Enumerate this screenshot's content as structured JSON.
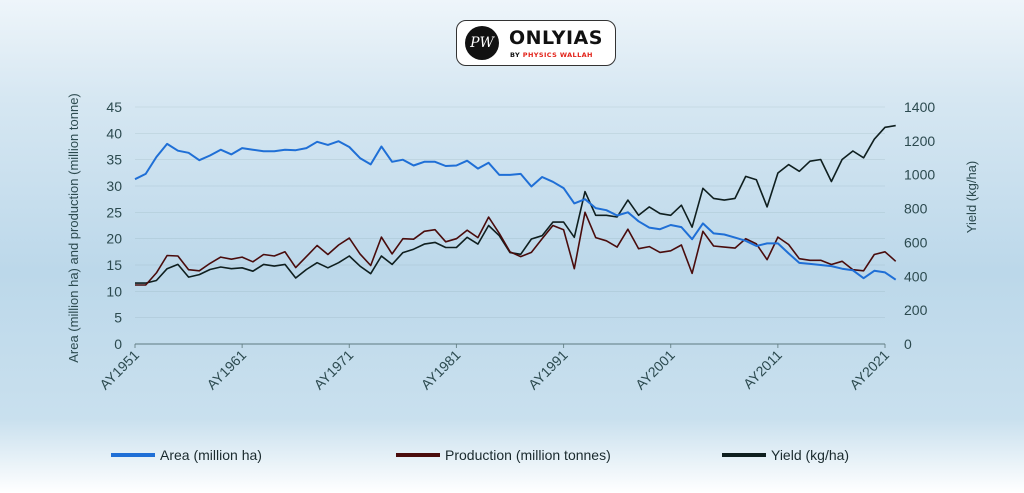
{
  "chart_data": {
    "type": "line",
    "colors": {
      "area": "#1f6fd6",
      "production": "#4a0c0c",
      "yield": "#0f1f1f",
      "axis": "#2c4a4f",
      "grid": "#6f8a90"
    },
    "left_axis": {
      "label": "Area (million ha) and production (million tonne)",
      "ylim": [
        0,
        45
      ],
      "ticks": [
        "0",
        "5",
        "10",
        "15",
        "20",
        "25",
        "30",
        "35",
        "40",
        "45"
      ],
      "tick_values": [
        0,
        5,
        10,
        15,
        20,
        25,
        30,
        35,
        40,
        45
      ]
    },
    "right_axis": {
      "label": "Yield (kg/ha)",
      "ylim": [
        0,
        1400
      ],
      "ticks": [
        "0",
        "200",
        "400",
        "600",
        "800",
        "1000",
        "1200",
        "1400"
      ],
      "tick_values": [
        0,
        200,
        400,
        600,
        800,
        1000,
        1200,
        1400
      ]
    },
    "x": {
      "start_year": 1951,
      "end_year": 2021,
      "tick_labels": [
        "AY1951",
        "AY1961",
        "AY1971",
        "AY1981",
        "AY1991",
        "AY2001",
        "AY2011",
        "AY2021"
      ],
      "tick_years": [
        1951,
        1961,
        1971,
        1981,
        1991,
        2001,
        2011,
        2021
      ]
    },
    "series": [
      {
        "name": "Area (million ha)",
        "key": "area",
        "axis": "left",
        "values": [
          31.3,
          32.3,
          35.5,
          38.0,
          36.7,
          36.3,
          34.9,
          35.8,
          36.9,
          36.0,
          37.2,
          36.9,
          36.6,
          36.6,
          36.9,
          36.8,
          37.2,
          38.4,
          37.8,
          38.5,
          37.4,
          35.3,
          34.1,
          37.5,
          34.6,
          35.0,
          33.9,
          34.6,
          34.6,
          33.8,
          33.9,
          34.8,
          33.3,
          34.4,
          32.1,
          32.1,
          32.3,
          29.9,
          31.7,
          30.8,
          29.6,
          26.7,
          27.5,
          25.8,
          25.4,
          24.4,
          25.0,
          23.3,
          22.1,
          21.8,
          22.6,
          22.2,
          19.9,
          22.9,
          21.0,
          20.8,
          20.2,
          19.6,
          18.6,
          19.1,
          19.1,
          17.2,
          15.4,
          15.2,
          15.0,
          14.8,
          14.3,
          14.0,
          12.5,
          13.9,
          13.6,
          12.2
        ]
      },
      {
        "name": "Production (million tonnes)",
        "key": "production",
        "axis": "left",
        "values": [
          11.2,
          11.2,
          13.5,
          16.8,
          16.7,
          14.1,
          13.9,
          15.3,
          16.5,
          16.1,
          16.5,
          15.6,
          17.0,
          16.7,
          17.5,
          14.5,
          16.6,
          18.7,
          17.0,
          18.8,
          20.1,
          17.1,
          14.9,
          20.3,
          17.1,
          20.0,
          19.9,
          21.4,
          21.7,
          19.4,
          20.0,
          21.6,
          20.2,
          24.1,
          21.0,
          17.5,
          16.6,
          17.4,
          20.0,
          22.5,
          21.7,
          14.3,
          25.0,
          20.2,
          19.6,
          18.4,
          21.8,
          18.1,
          18.5,
          17.4,
          17.7,
          18.8,
          13.4,
          21.4,
          18.6,
          18.4,
          18.2,
          20.0,
          19.0,
          16.0,
          20.3,
          18.9,
          16.2,
          15.9,
          15.9,
          15.1,
          15.7,
          14.1,
          13.9,
          17.0,
          17.5,
          15.7
        ]
      },
      {
        "name": "Yield (kg/ha)",
        "key": "yield",
        "axis": "left_scaled",
        "values": [
          360,
          360,
          375,
          445,
          470,
          395,
          410,
          440,
          455,
          445,
          450,
          430,
          470,
          460,
          470,
          390,
          440,
          480,
          450,
          480,
          520,
          460,
          415,
          520,
          470,
          540,
          560,
          590,
          600,
          570,
          570,
          630,
          590,
          700,
          640,
          540,
          530,
          620,
          640,
          720,
          720,
          630,
          900,
          760,
          760,
          750,
          850,
          760,
          810,
          770,
          760,
          820,
          690,
          920,
          860,
          850,
          860,
          990,
          970,
          810,
          1010,
          1060,
          1020,
          1080,
          1090,
          960,
          1090,
          1140,
          1100,
          1210,
          1280,
          1290
        ]
      }
    ],
    "legend": [
      "Area (million ha)",
      "Production (million tonnes)",
      "Yield (kg/ha)"
    ],
    "legend_placement": "bottom"
  },
  "logo": {
    "circle_text": "PW",
    "title": "ONLYIAS",
    "subtitle_prefix": "BY ",
    "subtitle_brand": "PHYSICS WALLAH"
  }
}
